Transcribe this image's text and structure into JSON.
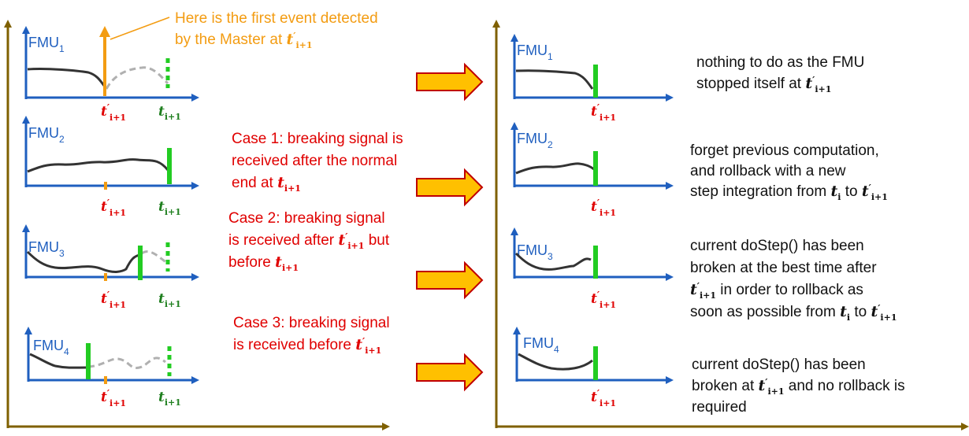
{
  "colors": {
    "axis": "#7f6000",
    "blue": "#1f5fbf",
    "red": "#e00000",
    "orange": "#f39c12",
    "green": "#00b050",
    "dark_green": "#1f7f1f",
    "green_bar": "#22cc22",
    "curve": "#333333",
    "grey_dash": "#b0b0b0",
    "arrow_fill": "#ffc000",
    "arrow_stroke": "#c00000"
  },
  "math": {
    "t_prime": "t",
    "prime_mark": "′",
    "sub_i_plus_1": "i+1",
    "sub_i": "i"
  },
  "fmus": [
    {
      "name": "FMU",
      "index": "1"
    },
    {
      "name": "FMU",
      "index": "2"
    },
    {
      "name": "FMU",
      "index": "3"
    },
    {
      "name": "FMU",
      "index": "4"
    }
  ],
  "annotations": {
    "event_line1": "Here is the first event detected",
    "event_line2": "by the Master at ",
    "case1_line1": "Case 1: breaking signal is",
    "case1_line2": "received after the normal",
    "case1_line3": " end at ",
    "case2_line1": "Case 2: breaking signal",
    "case2_line2a": "is received after ",
    "case2_line2b": " but",
    "case2_line3": "before ",
    "case3_line1": "Case 3: breaking signal",
    "case3_line2": "is received before "
  },
  "results": {
    "r1_line1": "nothing to do as the FMU",
    "r1_line2": "stopped itself at ",
    "r2_line1": "forget previous computation,",
    "r2_line2": "and rollback with a new",
    "r2_line3a": "step integration from ",
    "r2_line3b": " to ",
    "r3_line1": "current doStep() has been",
    "r3_line2": "broken at the best time after",
    "r3_line3": " in order to rollback as",
    "r3_line4a": "soon as possible from ",
    "r3_line4b": " to ",
    "r4_line1": "current doStep() has been",
    "r4_line2a": "broken at ",
    "r4_line2b": " and no rollback is",
    "r4_line3": "required"
  }
}
